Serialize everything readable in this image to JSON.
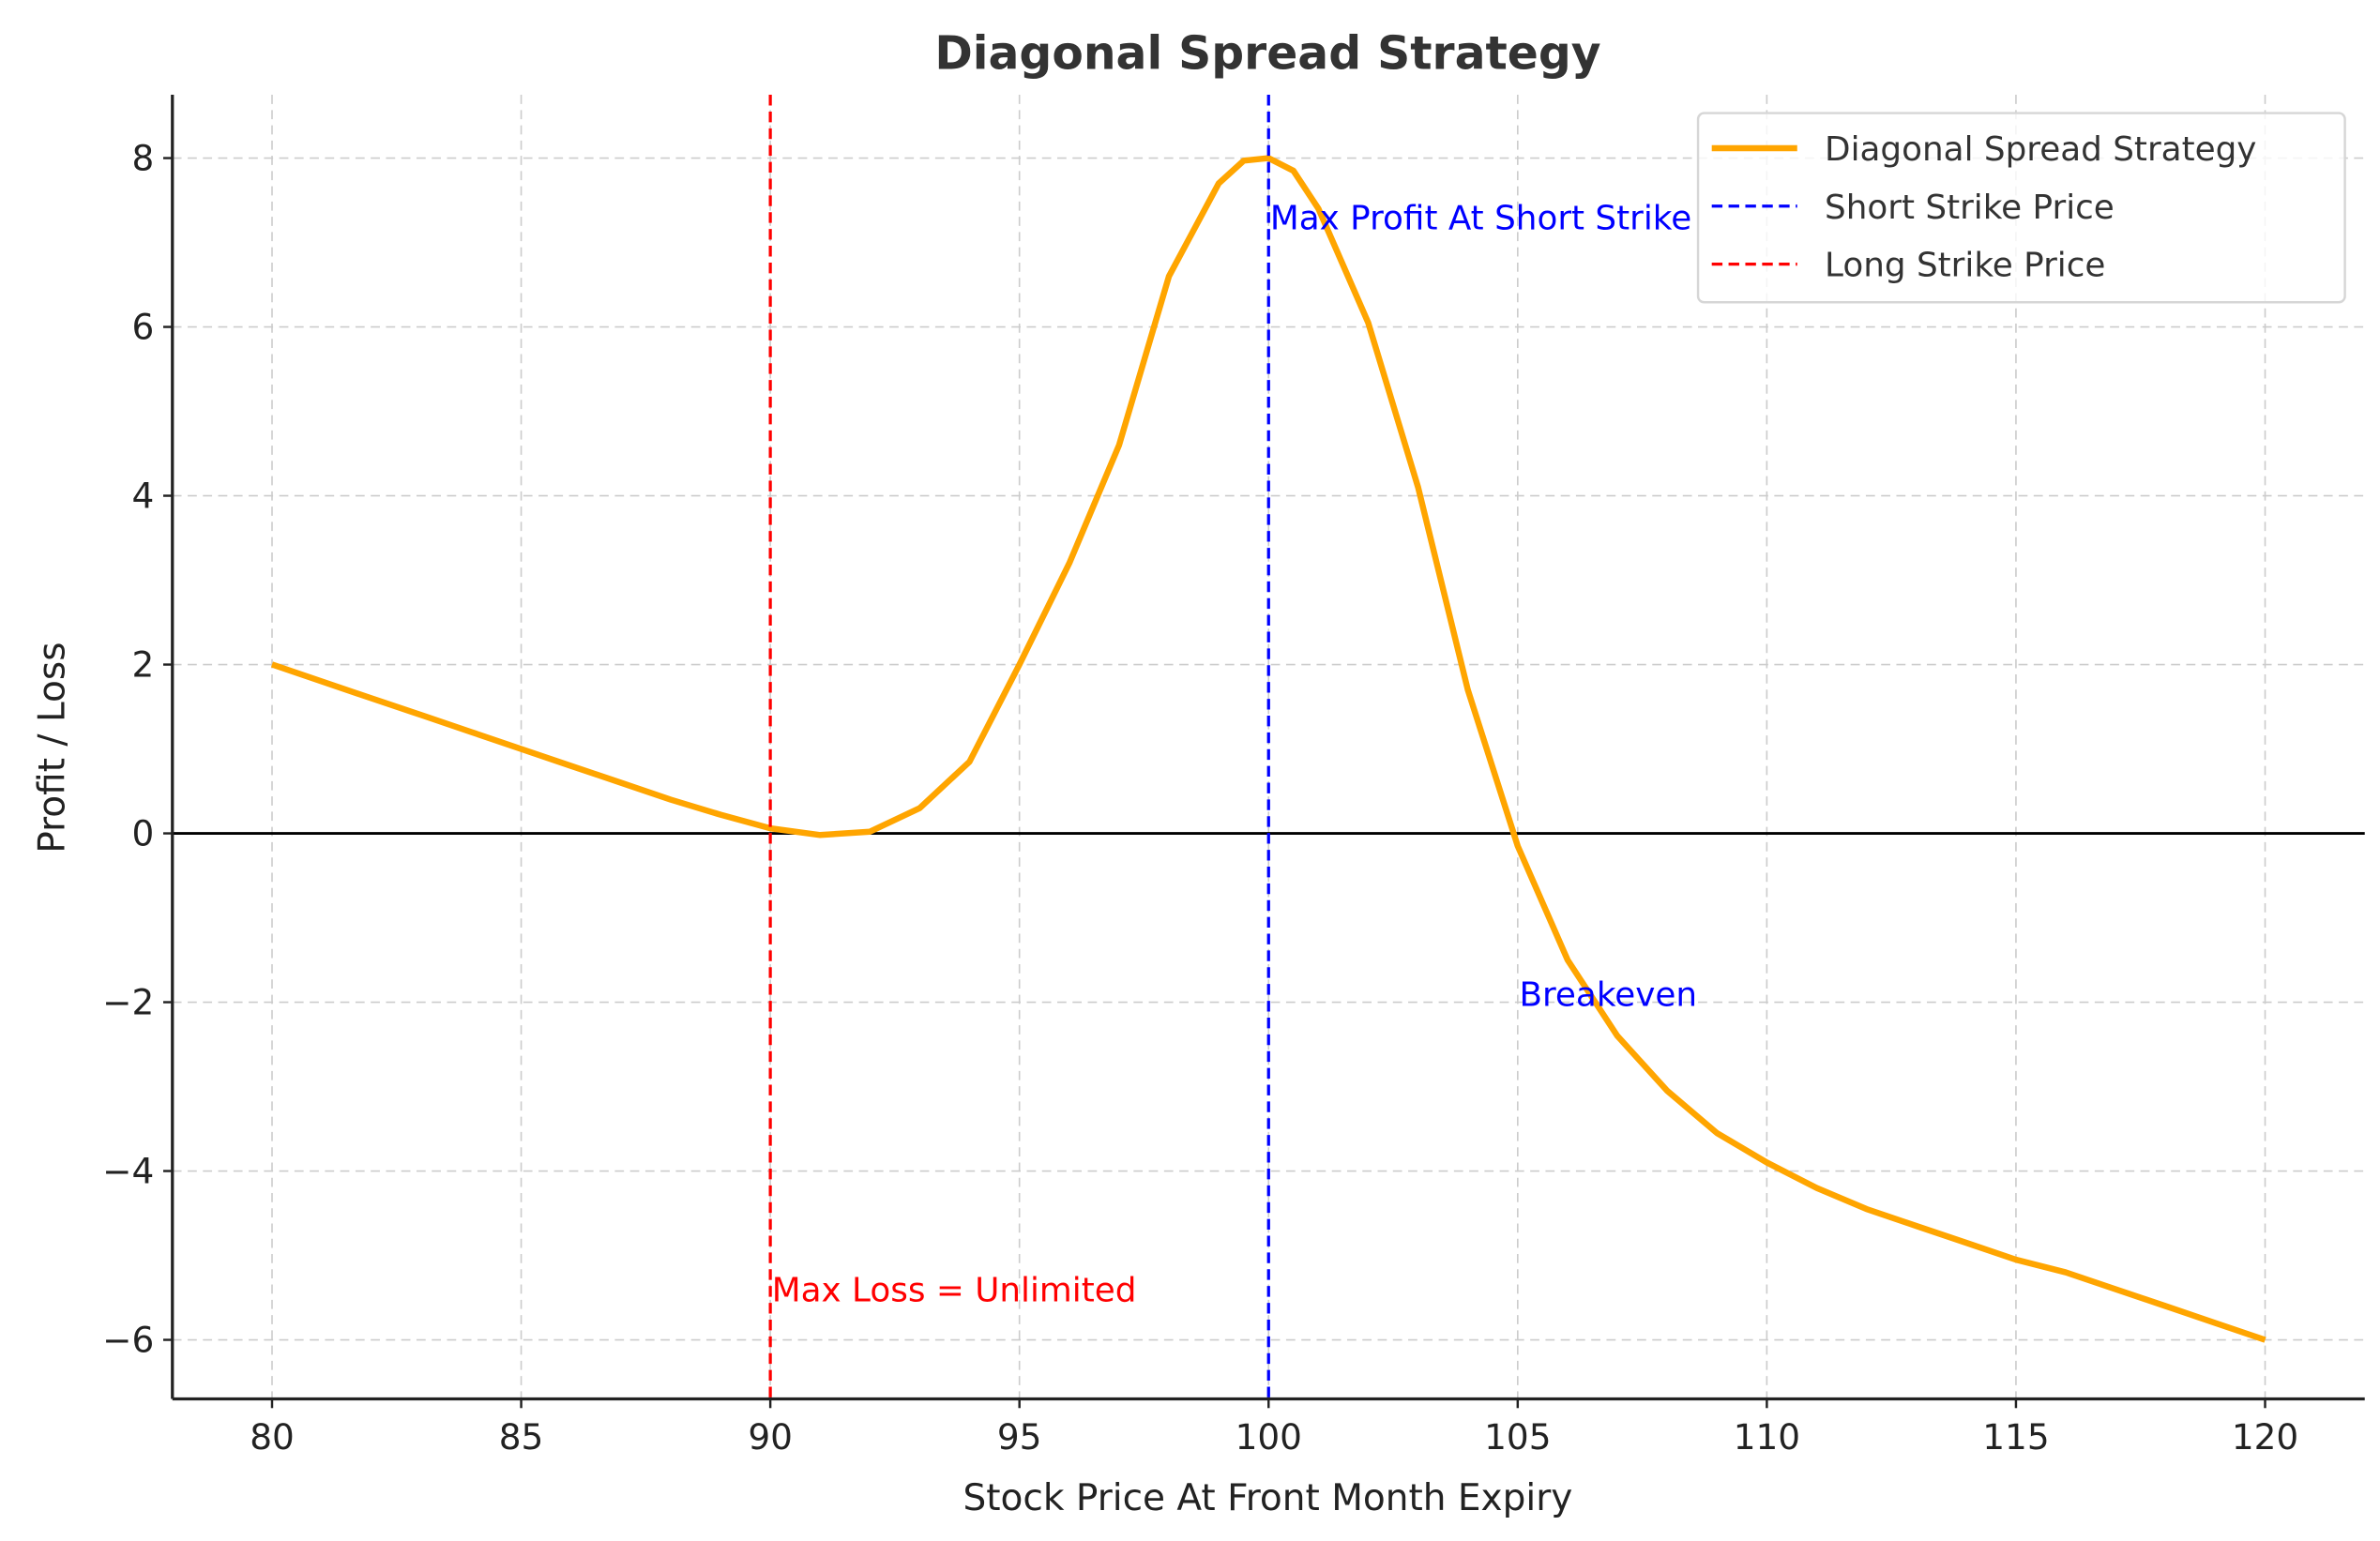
{
  "chart_data": {
    "type": "line",
    "title": "Diagonal Spread Strategy",
    "xlabel": "Stock Price At Front Month Expiry",
    "ylabel": "Profit / Loss",
    "xlim": [
      78,
      122
    ],
    "ylim": [
      -6.7,
      8.75
    ],
    "xticks": [
      80,
      85,
      90,
      95,
      100,
      105,
      110,
      115,
      120
    ],
    "yticks": [
      -6,
      -4,
      -2,
      0,
      2,
      4,
      6,
      8
    ],
    "grid": true,
    "legend_position": "top-right",
    "series": [
      {
        "name": "Diagonal Spread Strategy",
        "color": "#ffa500",
        "x": [
          80,
          81,
          82,
          83,
          84,
          85,
          86,
          87,
          88,
          89,
          90,
          91,
          92,
          93,
          94,
          95,
          96,
          97,
          98,
          99,
          99.5,
          100,
          100.5,
          101,
          102,
          103,
          104,
          105,
          106,
          107,
          108,
          109,
          110,
          111,
          112,
          113,
          114,
          115,
          116,
          117,
          118,
          119,
          120
        ],
        "y": [
          2.0,
          1.8,
          1.6,
          1.4,
          1.2,
          1.0,
          0.8,
          0.6,
          0.4,
          0.22,
          0.06,
          -0.02,
          0.02,
          0.3,
          0.85,
          2.0,
          3.2,
          4.6,
          6.6,
          7.7,
          7.97,
          8.0,
          7.85,
          7.4,
          6.05,
          4.1,
          1.7,
          -0.15,
          -1.5,
          -2.4,
          -3.05,
          -3.55,
          -3.9,
          -4.2,
          -4.45,
          -4.65,
          -4.85,
          -5.05,
          -5.2,
          -5.4,
          -5.6,
          -5.8,
          -6.0
        ]
      },
      {
        "name": "Short Strike Price",
        "color": "#0000ff",
        "vline": 100
      },
      {
        "name": "Long Strike Price",
        "color": "#ff0000",
        "vline": 90
      }
    ],
    "hline": 0,
    "annotations": [
      {
        "text": "Max Profit At Short Strike",
        "x": 100,
        "y": 7.3,
        "color": "#0000ff"
      },
      {
        "text": "Breakeven",
        "x": 105,
        "y": -1.9,
        "color": "#0000ff"
      },
      {
        "text": "Max Loss = Unlimited",
        "x": 90,
        "y": -5.4,
        "color": "#ff0000"
      }
    ]
  }
}
